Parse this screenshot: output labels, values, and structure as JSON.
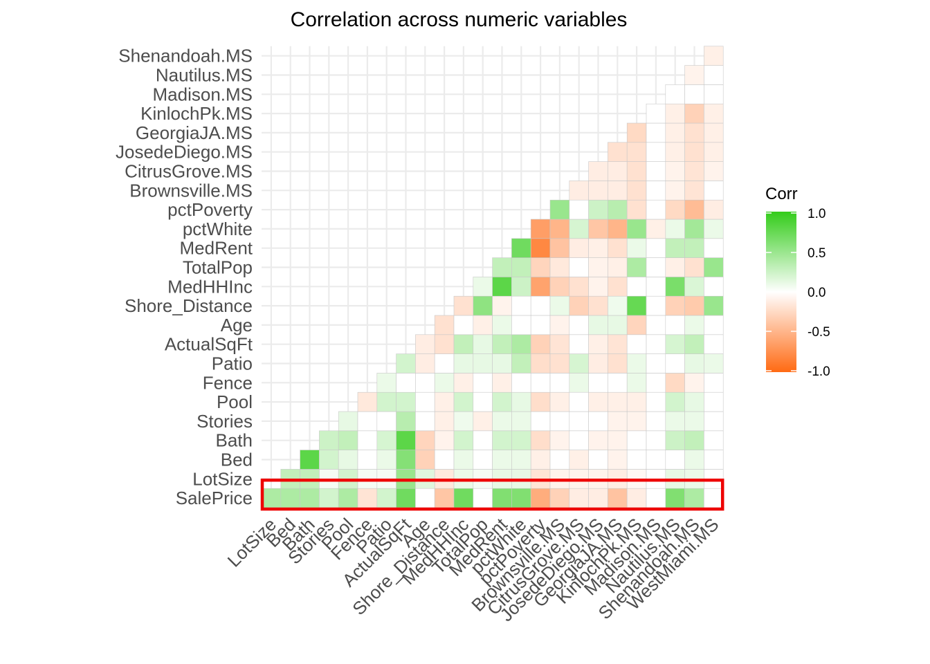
{
  "chart_data": {
    "type": "heatmap",
    "title": "Correlation across numeric variables",
    "variables": [
      "SalePrice",
      "LotSize",
      "Bed",
      "Bath",
      "Stories",
      "Pool",
      "Fence",
      "Patio",
      "ActualSqFt",
      "Age",
      "Shore_Distance",
      "MedHHInc",
      "TotalPop",
      "MedRent",
      "pctWhite",
      "pctPoverty",
      "Brownsville.MS",
      "CitrusGrove.MS",
      "JosedeDiego.MS",
      "GeorgiaJA.MS",
      "KinlochPk.MS",
      "Madison.MS",
      "Nautilus.MS",
      "Shenandoah.MS",
      "WestMiami.MS"
    ],
    "x_labels": [
      "LotSize",
      "Bed",
      "Bath",
      "Stories",
      "Pool",
      "Fence",
      "Patio",
      "ActualSqFt",
      "Age",
      "Shore_Distance",
      "MedHHInc",
      "TotalPop",
      "MedRent",
      "pctWhite",
      "pctPoverty",
      "Brownsville.MS",
      "CitrusGrove.MS",
      "JosedeDiego.MS",
      "GeorgiaJA.MS",
      "KinlochPk.MS",
      "Madison.MS",
      "Nautilus.MS",
      "Shenandoah.MS",
      "WestMiami.MS"
    ],
    "y_labels": [
      "SalePrice",
      "LotSize",
      "Bed",
      "Bath",
      "Stories",
      "Pool",
      "Fence",
      "Patio",
      "ActualSqFt",
      "Age",
      "Shore_Distance",
      "MedHHInc",
      "TotalPop",
      "MedRent",
      "pctWhite",
      "pctPoverty",
      "Brownsville.MS",
      "CitrusGrove.MS",
      "JosedeDiego.MS",
      "GeorgiaJA.MS",
      "KinlochPk.MS",
      "Madison.MS",
      "Nautilus.MS",
      "Shenandoah.MS"
    ],
    "cells": [
      [
        0.4,
        0.4,
        0.4,
        0.22,
        0.4,
        -0.18,
        0.22,
        0.7,
        0.0,
        -0.38,
        0.7,
        0.0,
        0.62,
        0.62,
        -0.55,
        -0.3,
        -0.12,
        -0.12,
        -0.4,
        -0.12,
        0.0,
        0.62,
        0.4,
        0.0
      ],
      [
        null,
        0.3,
        0.3,
        0.05,
        0.22,
        0.05,
        0.05,
        0.5,
        0.15,
        -0.15,
        0.1,
        0.05,
        0.12,
        0.12,
        -0.18,
        -0.08,
        -0.08,
        -0.08,
        -0.12,
        -0.05,
        0.0,
        0.12,
        0.1,
        0.0
      ],
      [
        null,
        null,
        0.8,
        0.22,
        0.12,
        0.0,
        0.1,
        0.6,
        -0.3,
        0.0,
        0.1,
        0.0,
        0.1,
        0.1,
        -0.1,
        0.0,
        -0.1,
        0.0,
        -0.08,
        0.0,
        0.0,
        0.0,
        0.1,
        0.0
      ],
      [
        null,
        null,
        null,
        0.25,
        0.3,
        0.0,
        0.2,
        0.8,
        -0.28,
        -0.08,
        0.22,
        0.0,
        0.22,
        0.22,
        -0.22,
        -0.08,
        0.0,
        -0.08,
        -0.08,
        0.0,
        0.0,
        0.25,
        0.3,
        0.0
      ],
      [
        null,
        null,
        null,
        null,
        0.12,
        0.0,
        0.0,
        0.35,
        0.0,
        -0.1,
        0.08,
        -0.1,
        0.1,
        0.1,
        0.0,
        0.0,
        0.0,
        0.0,
        -0.08,
        -0.08,
        0.0,
        0.1,
        0.1,
        0.0
      ],
      [
        null,
        null,
        null,
        null,
        null,
        -0.15,
        0.22,
        0.22,
        0.0,
        -0.1,
        0.22,
        0.0,
        0.22,
        0.12,
        -0.22,
        -0.1,
        0.0,
        -0.1,
        -0.1,
        -0.1,
        0.0,
        0.22,
        0.12,
        0.0
      ],
      [
        null,
        null,
        null,
        null,
        null,
        null,
        0.1,
        0.0,
        0.0,
        0.1,
        -0.1,
        0.0,
        -0.1,
        0.0,
        0.0,
        0.0,
        0.1,
        0.0,
        0.0,
        0.1,
        0.0,
        -0.25,
        -0.08,
        0.0
      ],
      [
        null,
        null,
        null,
        null,
        null,
        null,
        null,
        0.22,
        -0.12,
        0.0,
        0.12,
        0.12,
        0.12,
        0.3,
        -0.22,
        -0.2,
        0.2,
        -0.12,
        -0.2,
        0.1,
        0.0,
        0.0,
        0.12,
        0.1
      ],
      [
        null,
        null,
        null,
        null,
        null,
        null,
        null,
        null,
        -0.12,
        -0.2,
        0.3,
        0.12,
        0.3,
        0.4,
        -0.3,
        -0.18,
        0.0,
        -0.1,
        -0.18,
        0.0,
        0.0,
        0.2,
        0.3,
        0.0
      ],
      [
        null,
        null,
        null,
        null,
        null,
        null,
        null,
        null,
        null,
        -0.2,
        0.0,
        -0.1,
        0.1,
        0.0,
        0.0,
        -0.08,
        0.0,
        0.12,
        0.12,
        -0.28,
        0.0,
        0.0,
        0.1,
        0.0
      ],
      [
        null,
        null,
        null,
        null,
        null,
        null,
        null,
        null,
        null,
        null,
        -0.2,
        0.55,
        -0.08,
        0.0,
        0.0,
        0.1,
        -0.3,
        -0.2,
        0.08,
        0.75,
        0.0,
        -0.3,
        -0.35,
        0.5
      ],
      [
        null,
        null,
        null,
        null,
        null,
        null,
        null,
        null,
        null,
        null,
        null,
        0.1,
        0.8,
        0.25,
        -0.62,
        -0.3,
        -0.2,
        -0.08,
        -0.2,
        0.0,
        0.0,
        0.65,
        0.18,
        0.0
      ],
      [
        null,
        null,
        null,
        null,
        null,
        null,
        null,
        null,
        null,
        null,
        null,
        null,
        0.3,
        0.3,
        -0.28,
        -0.15,
        0.0,
        -0.08,
        -0.1,
        0.4,
        0.0,
        -0.1,
        -0.2,
        0.5
      ],
      [
        null,
        null,
        null,
        null,
        null,
        null,
        null,
        null,
        null,
        null,
        null,
        null,
        null,
        0.7,
        -0.8,
        -0.4,
        -0.12,
        -0.1,
        -0.2,
        0.1,
        0.0,
        0.3,
        0.3,
        0.0
      ],
      [
        null,
        null,
        null,
        null,
        null,
        null,
        null,
        null,
        null,
        null,
        null,
        null,
        null,
        null,
        -0.65,
        -0.5,
        0.2,
        -0.38,
        -0.5,
        0.5,
        -0.1,
        0.1,
        0.45,
        0.1
      ],
      [
        null,
        null,
        null,
        null,
        null,
        null,
        null,
        null,
        null,
        null,
        null,
        null,
        null,
        null,
        null,
        0.5,
        0.0,
        0.25,
        0.35,
        -0.2,
        0.0,
        -0.25,
        -0.45,
        -0.12
      ],
      [
        null,
        null,
        null,
        null,
        null,
        null,
        null,
        null,
        null,
        null,
        null,
        null,
        null,
        null,
        null,
        null,
        -0.12,
        -0.12,
        -0.12,
        -0.2,
        0.0,
        -0.08,
        -0.18,
        0.0
      ],
      [
        null,
        null,
        null,
        null,
        null,
        null,
        null,
        null,
        null,
        null,
        null,
        null,
        null,
        null,
        null,
        null,
        null,
        -0.12,
        -0.12,
        -0.2,
        0.0,
        -0.08,
        -0.18,
        -0.08
      ],
      [
        null,
        null,
        null,
        null,
        null,
        null,
        null,
        null,
        null,
        null,
        null,
        null,
        null,
        null,
        null,
        null,
        null,
        null,
        -0.2,
        -0.2,
        0.0,
        -0.1,
        -0.2,
        -0.1
      ],
      [
        null,
        null,
        null,
        null,
        null,
        null,
        null,
        null,
        null,
        null,
        null,
        null,
        null,
        null,
        null,
        null,
        null,
        null,
        null,
        -0.25,
        0.0,
        -0.1,
        -0.2,
        -0.1
      ],
      [
        null,
        null,
        null,
        null,
        null,
        null,
        null,
        null,
        null,
        null,
        null,
        null,
        null,
        null,
        null,
        null,
        null,
        null,
        null,
        null,
        0.0,
        -0.1,
        -0.3,
        -0.1
      ],
      [
        null,
        null,
        null,
        null,
        null,
        null,
        null,
        null,
        null,
        null,
        null,
        null,
        null,
        null,
        null,
        null,
        null,
        null,
        null,
        null,
        null,
        0.0,
        0.0,
        0.0
      ],
      [
        null,
        null,
        null,
        null,
        null,
        null,
        null,
        null,
        null,
        null,
        null,
        null,
        null,
        null,
        null,
        null,
        null,
        null,
        null,
        null,
        null,
        null,
        -0.08,
        0.0
      ],
      [
        null,
        null,
        null,
        null,
        null,
        null,
        null,
        null,
        null,
        null,
        null,
        null,
        null,
        null,
        null,
        null,
        null,
        null,
        null,
        null,
        null,
        null,
        null,
        -0.1
      ]
    ],
    "legend": {
      "title": "Corr",
      "ticks": [
        "1.0",
        "0.5",
        "0.0",
        "-0.5",
        "-1.0"
      ],
      "range": [
        -1,
        1
      ],
      "placement": "right"
    },
    "colors": {
      "high": "#33cc1a",
      "mid": "#ffffff",
      "low": "#ff6a13",
      "highlight": "#ee0000",
      "grid": "#ebebeb",
      "cell_border": "#c8c8c8"
    },
    "highlighted_row": "SalePrice",
    "grid": true
  }
}
